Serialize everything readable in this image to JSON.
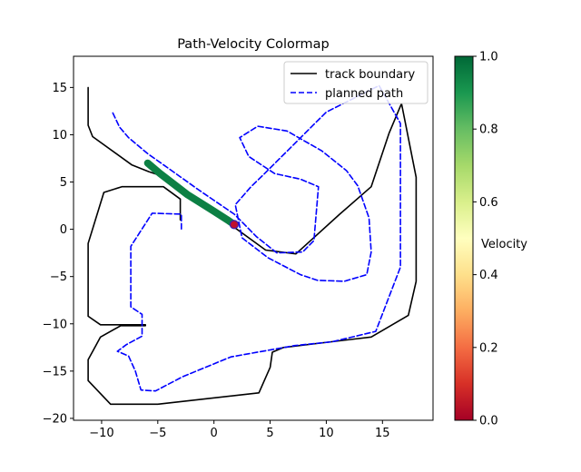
{
  "chart_data": [
    {
      "type": "line",
      "title": "Path-Velocity Colormap",
      "xlabel": "",
      "ylabel": "",
      "xlim": [
        -12.5,
        19.5
      ],
      "ylim": [
        -20.2,
        18.3
      ],
      "xticks": [
        -10,
        -5,
        0,
        5,
        10,
        15
      ],
      "xtick_labels": [
        "−10",
        "−5",
        "0",
        "5",
        "10",
        "15"
      ],
      "yticks": [
        -20,
        -15,
        -10,
        -5,
        0,
        5,
        10,
        15
      ],
      "ytick_labels": [
        "−20",
        "−15",
        "−10",
        "−5",
        "0",
        "5",
        "10",
        "15"
      ],
      "grid": false,
      "legend": {
        "position": "top-right",
        "entries": [
          "track boundary",
          "planned path"
        ]
      },
      "series": [
        {
          "name": "track boundary",
          "style": "solid",
          "color": "#000000",
          "x": [
            -11.2,
            -11.2,
            -10.8,
            -7.3,
            -5.8,
            -4.8,
            1.0,
            4.6,
            7.3,
            11.2,
            14.0,
            15.6,
            16.7,
            18.0,
            18.0,
            17.3,
            14.0,
            6.2,
            5.2,
            5.0,
            4.0,
            -5.0,
            -9.2,
            -11.2,
            -11.2,
            -10.1,
            -8.3,
            -6.1,
            -6.1,
            -10.1,
            -11.2,
            -11.2,
            -9.8,
            -8.2,
            -4.5,
            -3.0,
            -3.0
          ],
          "y": [
            15.0,
            11.0,
            9.8,
            6.8,
            6.1,
            5.7,
            0.9,
            -2.2,
            -2.6,
            1.6,
            4.5,
            10.2,
            13.3,
            5.5,
            -5.5,
            -9.1,
            -11.4,
            -12.5,
            -13.0,
            -14.6,
            -17.3,
            -18.5,
            -18.5,
            -16.0,
            -13.8,
            -11.4,
            -10.2,
            -10.2,
            -10.1,
            -10.1,
            -9.2,
            -1.5,
            3.9,
            4.5,
            4.5,
            3.2,
            1.0
          ]
        },
        {
          "name": "planned path",
          "style": "dashed",
          "color": "#0000ff",
          "x": [
            -9.0,
            -8.4,
            -7.6,
            -5.9,
            -4.0,
            -1.4,
            1.8,
            3.8,
            5.6,
            7.9,
            8.9,
            9.3,
            7.7,
            5.4,
            3.1,
            2.3,
            3.9,
            6.5,
            9.6,
            11.8,
            12.8,
            13.8,
            14.0,
            13.6,
            11.6,
            9.2,
            7.7,
            4.8,
            2.5,
            1.9,
            3.3,
            4.6,
            10.0,
            14.7,
            16.6,
            16.6,
            14.4,
            10.5,
            7.2,
            1.5,
            -2.8,
            -5.2,
            -6.5,
            -7.0,
            -7.6,
            -8.6,
            -7.8,
            -6.4,
            -6.4,
            -7.4,
            -7.4,
            -5.5,
            -2.9,
            -2.9
          ],
          "y": [
            12.3,
            10.8,
            9.7,
            8.0,
            6.4,
            4.2,
            1.6,
            -0.8,
            -2.5,
            -2.4,
            -1.2,
            4.5,
            5.3,
            5.9,
            7.7,
            9.7,
            10.9,
            10.4,
            8.3,
            6.2,
            4.6,
            1.2,
            -2.4,
            -4.8,
            -5.5,
            -5.4,
            -4.8,
            -3.0,
            -0.9,
            2.6,
            4.5,
            6.0,
            12.4,
            15.2,
            11.2,
            -4.0,
            -10.8,
            -11.9,
            -12.3,
            -13.5,
            -15.6,
            -17.1,
            -17.0,
            -15.0,
            -13.4,
            -12.9,
            -12.2,
            -11.3,
            -9.0,
            -8.2,
            -1.8,
            1.7,
            1.6,
            0.0
          ]
        },
        {
          "name": "",
          "style": "thick-colored",
          "colormap_value": 0.95,
          "x": [
            -5.9,
            -4.8,
            -3.6,
            -2.4,
            -1.2,
            0.0,
            1.2,
            1.8
          ],
          "y": [
            7.0,
            5.9,
            4.8,
            3.7,
            2.8,
            1.9,
            1.0,
            0.5
          ]
        }
      ],
      "markers": [
        {
          "x": 1.8,
          "y": 0.5,
          "face": "#c0102e",
          "edge": "#3a1fb3"
        }
      ]
    },
    {
      "type": "heatmap",
      "title": "",
      "ylabel": "Velocity",
      "colormap": "RdYlGn",
      "range": [
        0.0,
        1.0
      ],
      "ticks": [
        0.0,
        0.2,
        0.4,
        0.6,
        0.8,
        1.0
      ],
      "tick_labels": [
        "0.0",
        "0.2",
        "0.4",
        "0.6",
        "0.8",
        "1.0"
      ],
      "stops": [
        "#a50026",
        "#d73027",
        "#f46d43",
        "#fdae61",
        "#fee08b",
        "#ffffbf",
        "#d9ef8b",
        "#a6d96a",
        "#66bd63",
        "#1a9850",
        "#006837"
      ]
    }
  ]
}
